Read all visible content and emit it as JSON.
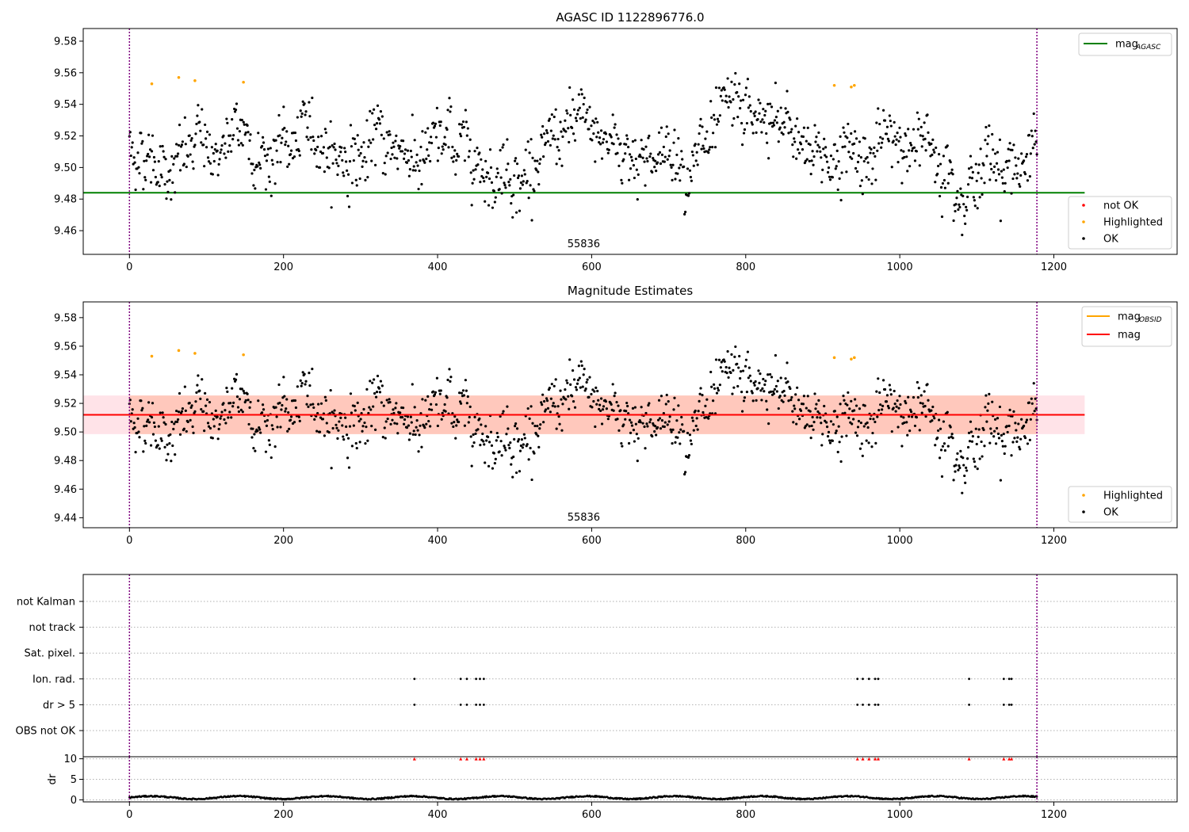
{
  "colors": {
    "ok": "#000000",
    "highlighted": "#ffa500",
    "not_ok": "#ff0000",
    "mag_agasc_line": "#008000",
    "mag_line": "#ff0000",
    "mag_obsid_line": "#ffa500",
    "obs_boundary": "#800080",
    "band_obsid": "#ffa07a",
    "band_agasc": "#ffc0cb",
    "grid": "#b0b0b0"
  },
  "chart_data": [
    {
      "type": "scatter",
      "title": "AGASC ID 1122896776.0",
      "xlim": [
        -60,
        1360
      ],
      "ylim": [
        9.445,
        9.588
      ],
      "xticks": [
        0,
        200,
        400,
        600,
        800,
        1000,
        1200
      ],
      "yticks": [
        9.46,
        9.48,
        9.5,
        9.52,
        9.54,
        9.56,
        9.58
      ],
      "obs_boundaries": [
        0,
        1178
      ],
      "obsid_label": "55836",
      "reference_lines": [
        {
          "label_base": "mag",
          "label_sub": "AGASC",
          "value": 9.484,
          "color": "#008000",
          "x_range": [
            -60,
            1240
          ]
        }
      ],
      "line_legend": "top-right",
      "marker_legend": "bottom-right",
      "series": [
        {
          "name": "not OK",
          "color": "#ff0000",
          "points": []
        },
        {
          "name": "Highlighted",
          "color": "#ffa500",
          "points": [
            [
              29,
              9.553
            ],
            [
              64,
              9.557
            ],
            [
              85,
              9.555
            ],
            [
              148,
              9.554
            ],
            [
              915,
              9.552
            ],
            [
              937,
              9.551
            ],
            [
              941,
              9.552
            ]
          ]
        },
        {
          "name": "OK",
          "color": "#000000",
          "generated": true,
          "n": 1178,
          "center": 9.512,
          "spread": 0.012,
          "x_range": [
            0,
            1178
          ]
        }
      ]
    },
    {
      "type": "scatter",
      "title": "Magnitude Estimates",
      "xlim": [
        -60,
        1360
      ],
      "ylim": [
        9.433,
        9.591
      ],
      "xticks": [
        0,
        200,
        400,
        600,
        800,
        1000,
        1200
      ],
      "yticks": [
        9.44,
        9.46,
        9.48,
        9.5,
        9.52,
        9.54,
        9.56,
        9.58
      ],
      "obs_boundaries": [
        0,
        1178
      ],
      "obsid_label": "55836",
      "bands": [
        {
          "y0": 9.4985,
          "y1": 9.5255,
          "x_range": [
            -60,
            1240
          ],
          "color": "#ffc0cb",
          "opacity": 0.45
        },
        {
          "y0": 9.4985,
          "y1": 9.5255,
          "x_range": [
            0,
            1178
          ],
          "color": "#ffa07a",
          "opacity": 0.4
        }
      ],
      "reference_lines": [
        {
          "label_base": "mag",
          "label_sub": "OBSID",
          "value": 9.512,
          "color": "#ffa500",
          "x_range": [
            0,
            1178
          ]
        },
        {
          "label_base": "mag",
          "label_sub": "",
          "value": 9.512,
          "color": "#ff0000",
          "x_range": [
            -60,
            1240
          ]
        }
      ],
      "line_legend": "top-right",
      "marker_legend": "bottom-right",
      "series": [
        {
          "name": "Highlighted",
          "color": "#ffa500",
          "points": [
            [
              29,
              9.553
            ],
            [
              64,
              9.557
            ],
            [
              85,
              9.555
            ],
            [
              148,
              9.554
            ],
            [
              915,
              9.552
            ],
            [
              937,
              9.551
            ],
            [
              941,
              9.552
            ]
          ]
        },
        {
          "name": "OK",
          "color": "#000000",
          "generated": true,
          "same_as_panel": 0
        }
      ]
    },
    {
      "type": "scatter",
      "title": "",
      "xlim": [
        -60,
        1360
      ],
      "categories": [
        "not Kalman",
        "not track",
        "Sat. pixel.",
        "Ion. rad.",
        "dr > 5",
        "OBS not OK"
      ],
      "flag_points": {
        "Ion. rad.": [
          370,
          430,
          438,
          450,
          455,
          460,
          945,
          952,
          960,
          968,
          972,
          1090,
          1135,
          1142,
          1145
        ],
        "dr > 5": [
          370,
          430,
          438,
          450,
          455,
          460,
          945,
          952,
          960,
          968,
          972,
          1090,
          1135,
          1142,
          1145
        ]
      },
      "obs_boundaries": [
        0,
        1178
      ]
    },
    {
      "type": "scatter",
      "title": "",
      "ylabel": "dr",
      "xlim": [
        -60,
        1360
      ],
      "ylim": [
        -0.5,
        10.5
      ],
      "xticks": [
        0,
        200,
        400,
        600,
        800,
        1000,
        1200
      ],
      "yticks": [
        0,
        5,
        10
      ],
      "clipped_value": 10,
      "clipped_x": [
        370,
        430,
        438,
        450,
        455,
        460,
        945,
        952,
        960,
        968,
        972,
        1090,
        1135,
        1142,
        1145
      ],
      "clipped_color": "#ff0000",
      "series": [
        {
          "name": "dr",
          "color": "#000000",
          "generated": true,
          "n": 1178,
          "center": 0.55,
          "spread": 0.3,
          "x_range": [
            0,
            1178
          ]
        }
      ],
      "obs_boundaries": [
        0,
        1178
      ]
    }
  ]
}
